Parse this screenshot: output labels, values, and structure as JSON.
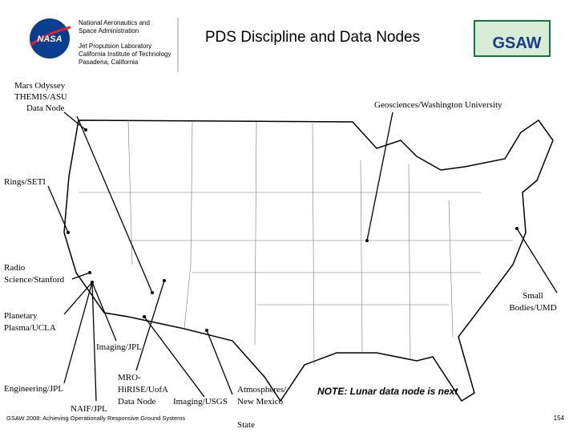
{
  "header": {
    "org_lines": [
      "National Aeronautics and",
      "Space Administration"
    ],
    "lab_lines": [
      "Jet Propulsion Laboratory",
      "California Institute of Technology",
      "Pasadena, California"
    ],
    "logo_left": "NASA",
    "title": "PDS Discipline and Data Nodes",
    "logo_right": "GSAW"
  },
  "nodes": [
    {
      "lines": [
        "Mars Odyssey",
        "THEMIS/ASU",
        "Data Node"
      ]
    },
    {
      "lines": [
        "Geosciences/Washington University"
      ]
    },
    {
      "lines": [
        "Rings/SETI"
      ]
    },
    {
      "lines": [
        "Radio",
        "Science/Stanford"
      ]
    },
    {
      "lines": [
        "Small",
        "Bodies/UMD"
      ]
    },
    {
      "lines": [
        "Planetary",
        "Plasma/UCLA"
      ]
    },
    {
      "lines": [
        "Imaging/JPL"
      ]
    },
    {
      "lines": [
        "Engineering/JPL"
      ]
    },
    {
      "lines": [
        "NAIF/JPL"
      ]
    },
    {
      "lines": [
        "MRO-",
        "HiRISE/UofA",
        "Data Node"
      ]
    },
    {
      "lines": [
        "Imaging/USGS"
      ]
    },
    {
      "lines": [
        "Atmospheres/",
        "New Mexico",
        "State"
      ]
    }
  ],
  "note": "NOTE: Lunar data node is next",
  "footer": {
    "text": "GSAW 2008: Achieving Operationally Responsive Ground Systems",
    "page": "154"
  }
}
